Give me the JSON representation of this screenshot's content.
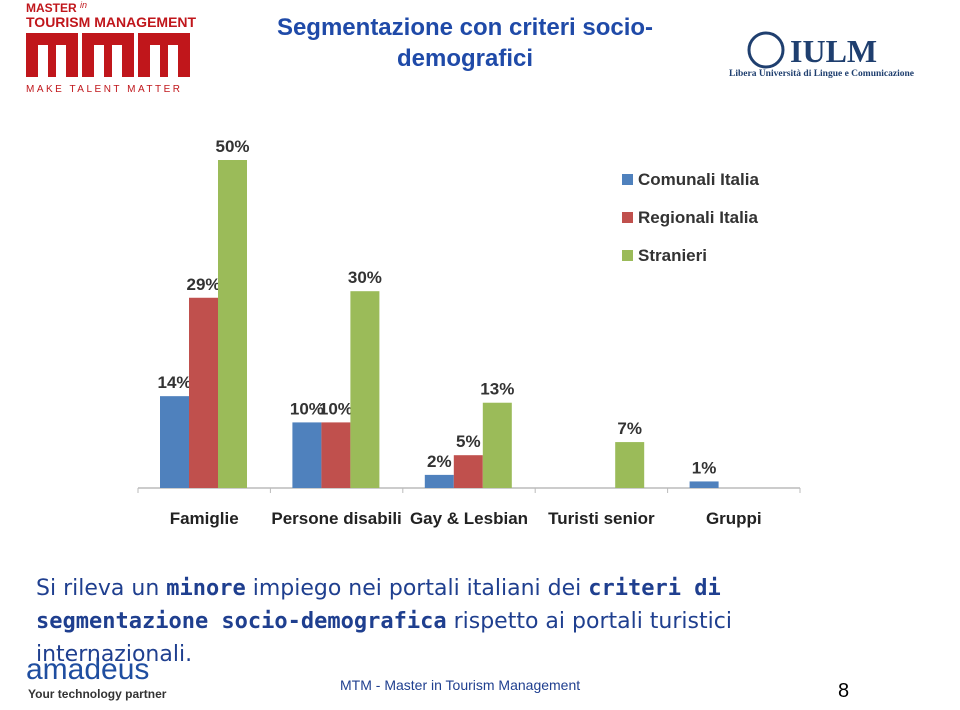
{
  "header": {
    "logo_title_small": "MASTER",
    "logo_title_in": "in",
    "logo_title": "TOURISM MANAGEMENT",
    "logo_tagline": "MAKE TALENT MATTER",
    "title": "Segmentazione con criteri socio-demografici",
    "university": "IULM",
    "university_subtitle": "Libera Università di Lingue e Comunicazione"
  },
  "chart_data": {
    "type": "bar",
    "categories": [
      "Famiglie",
      "Persone disabili",
      "Gay & Lesbian",
      "Turisti senior",
      "Gruppi"
    ],
    "series": [
      {
        "name": "Comunali Italia",
        "color": "#4f81bd",
        "values": [
          14,
          10,
          2,
          null,
          1
        ],
        "value_labels": [
          "14%",
          "10%",
          "2%",
          null,
          "1%"
        ]
      },
      {
        "name": "Regionali Italia",
        "color": "#c0504d",
        "values": [
          29,
          10,
          5,
          null,
          null
        ],
        "value_labels": [
          "29%",
          "10%",
          "5%",
          null,
          null
        ]
      },
      {
        "name": "Stranieri",
        "color": "#9bbb59",
        "values": [
          50,
          30,
          13,
          7,
          null
        ],
        "value_labels": [
          "50%",
          "30%",
          "13%",
          "7%",
          null
        ]
      }
    ]
  },
  "body": [
    {
      "text": "Si rileva un ",
      "bold": false
    },
    {
      "text": "minore",
      "bold": true
    },
    {
      "text": " impiego nei portali italiani dei ",
      "bold": false
    },
    {
      "text": "criteri di segmentazione socio-demografica",
      "bold": true
    },
    {
      "text": " rispetto ai portali turistici internazionali.",
      "bold": false
    }
  ],
  "footer": {
    "sponsor": "amadeus",
    "sponsor_tagline": "Your technology partner",
    "text": "MTM - Master in Tourism Management",
    "page": "8"
  }
}
